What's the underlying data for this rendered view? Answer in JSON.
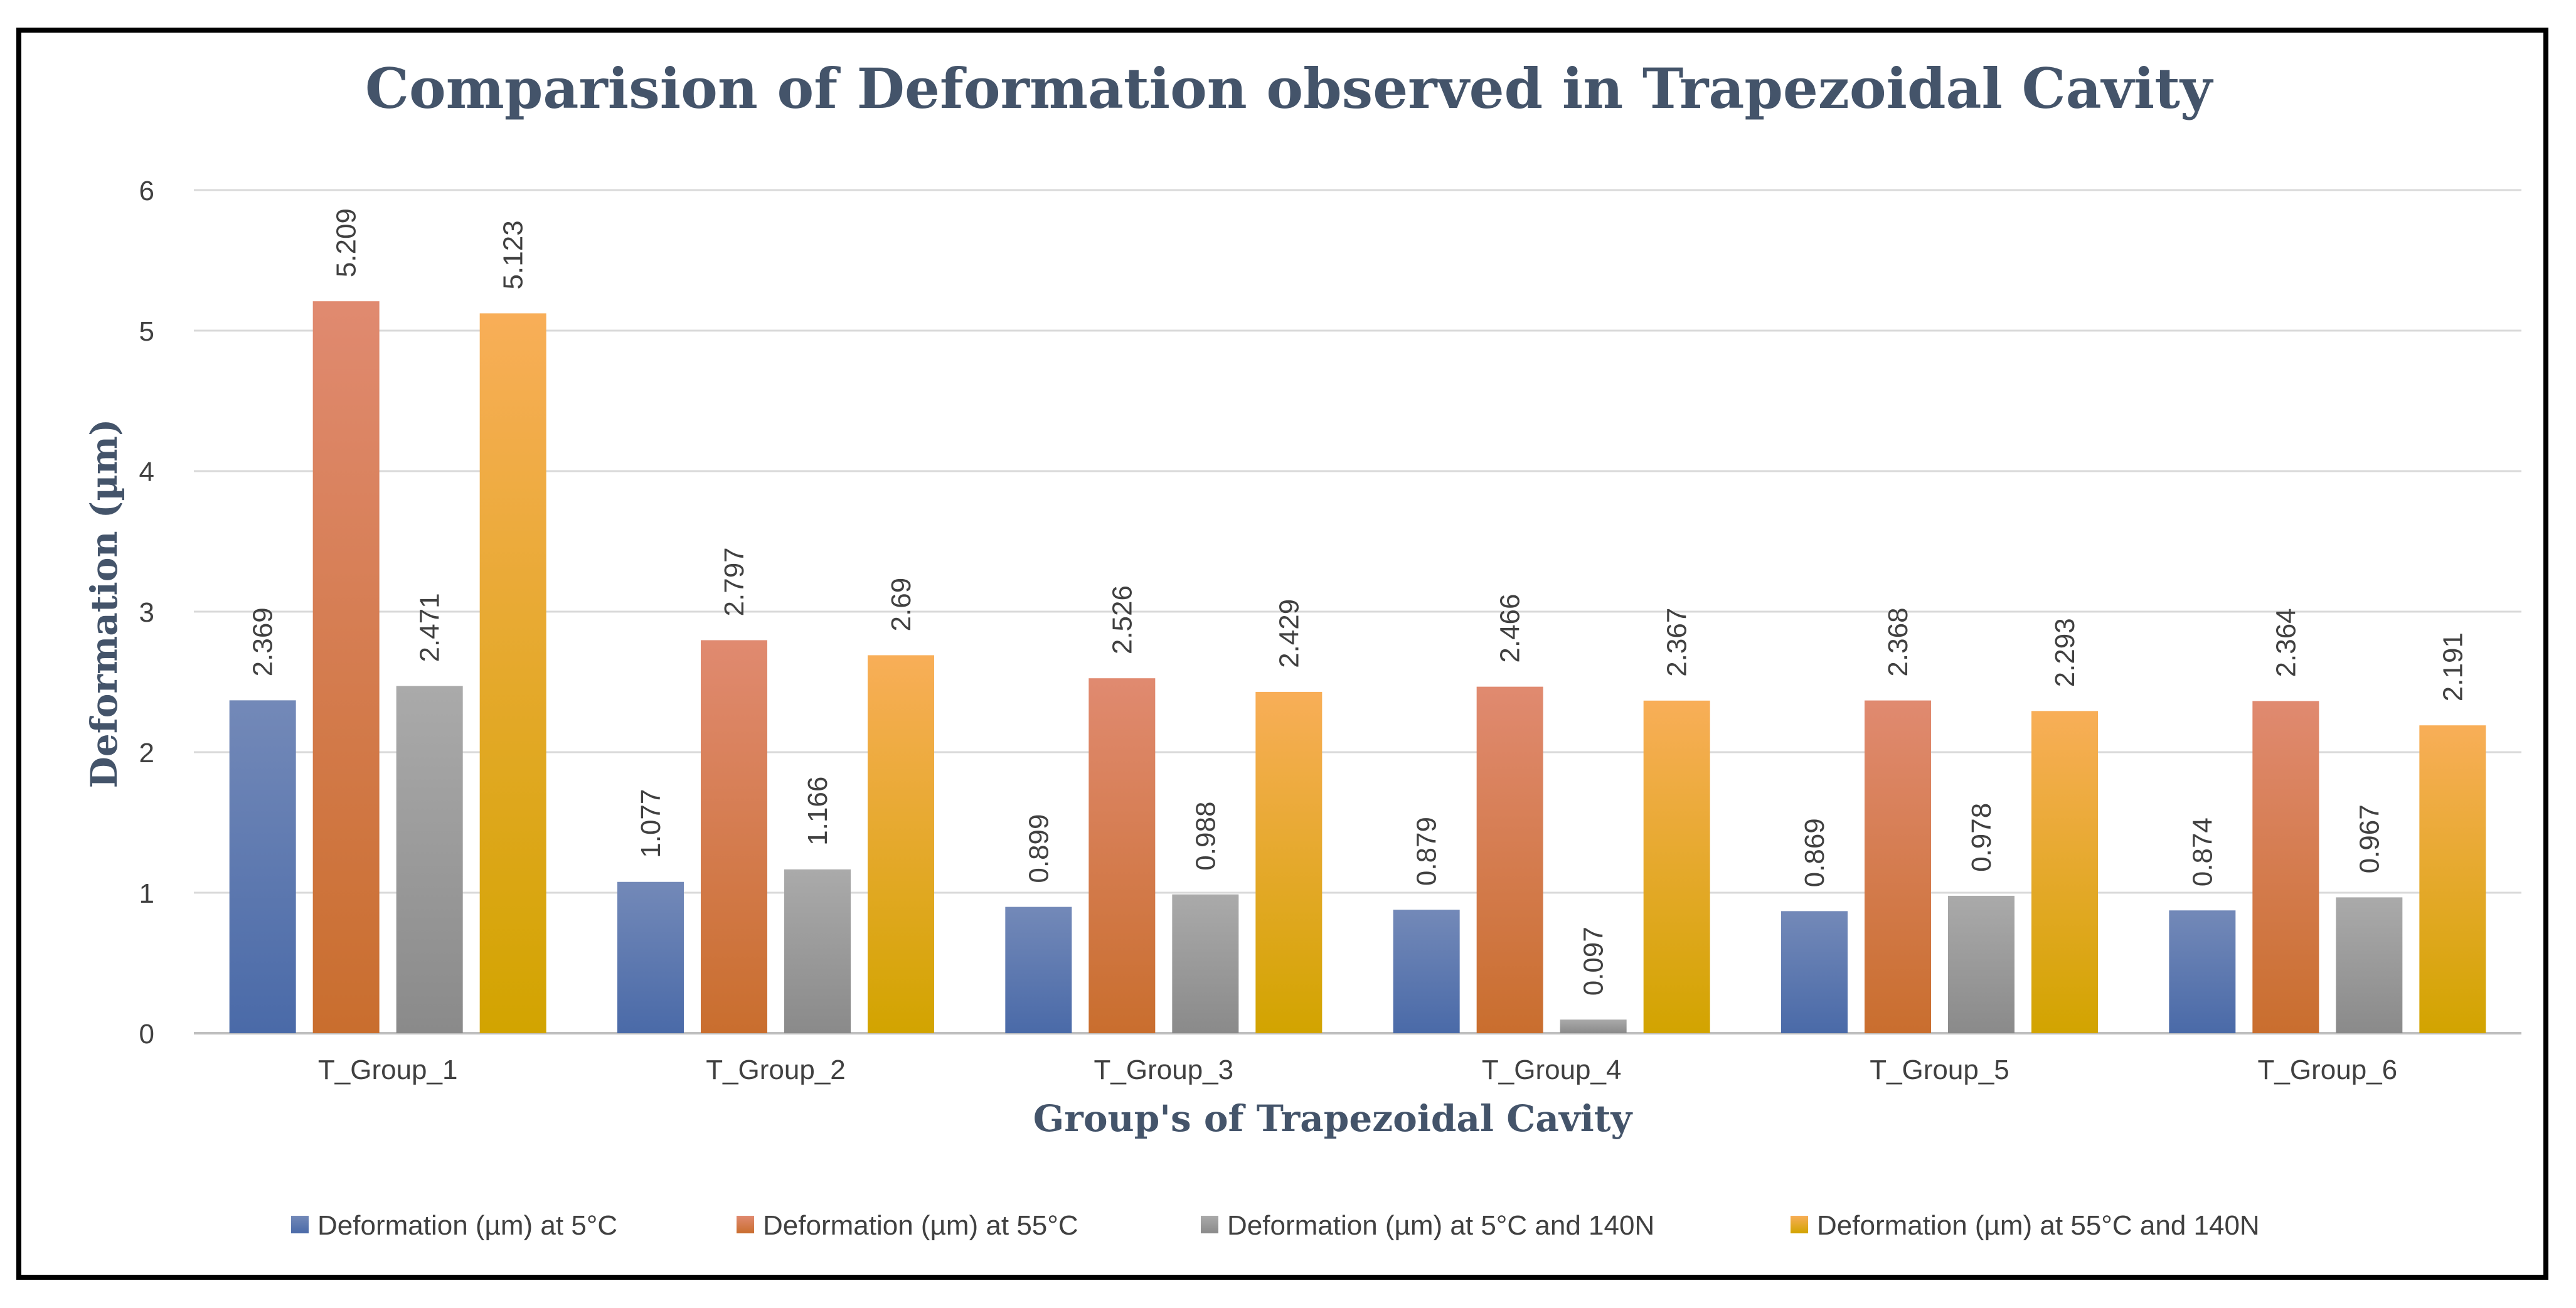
{
  "chart_data": {
    "type": "bar",
    "title": "Comparision of Deformation observed in Trapezoidal Cavity",
    "xlabel": "Group's of Trapezoidal Cavity",
    "ylabel": "Deformation (µm)",
    "ylim": [
      0,
      6
    ],
    "yticks": [
      0,
      1,
      2,
      3,
      4,
      5,
      6
    ],
    "grid": true,
    "legend_position": "bottom",
    "categories": [
      "T_Group_1",
      "T_Group_2",
      "T_Group_3",
      "T_Group_4",
      "T_Group_5",
      "T_Group_6"
    ],
    "series": [
      {
        "name": "Deformation (µm) at 5°C",
        "values": [
          2.369,
          1.077,
          0.899,
          0.879,
          0.869,
          0.874
        ],
        "labels": [
          "2.369",
          "1.077",
          "0.899",
          "0.879",
          "0.869",
          "0.874"
        ],
        "color_top": "#7389B8",
        "color_bottom": "#4A6AA8"
      },
      {
        "name": "Deformation (µm) at 55°C",
        "values": [
          5.209,
          2.797,
          2.526,
          2.466,
          2.368,
          2.364
        ],
        "labels": [
          "5.209",
          "2.797",
          "2.526",
          "2.466",
          "2.368",
          "2.364"
        ],
        "color_top": "#E08A70",
        "color_bottom": "#C96E2E"
      },
      {
        "name": "Deformation (µm) at 5°C and 140N",
        "values": [
          2.471,
          1.166,
          0.988,
          0.097,
          0.978,
          0.967
        ],
        "labels": [
          "2.471",
          "1.166",
          "0.988",
          "0.097",
          "0.978",
          "0.967"
        ],
        "color_top": "#AAAAAA",
        "color_bottom": "#8A8A8A"
      },
      {
        "name": "Deformation (µm) at 55°C and 140N",
        "values": [
          5.123,
          2.69,
          2.429,
          2.367,
          2.293,
          2.191
        ],
        "labels": [
          "5.123",
          "2.69",
          "2.429",
          "2.367",
          "2.293",
          "2.191"
        ],
        "color_top": "#F8AE58",
        "color_bottom": "#D2A400"
      }
    ]
  }
}
